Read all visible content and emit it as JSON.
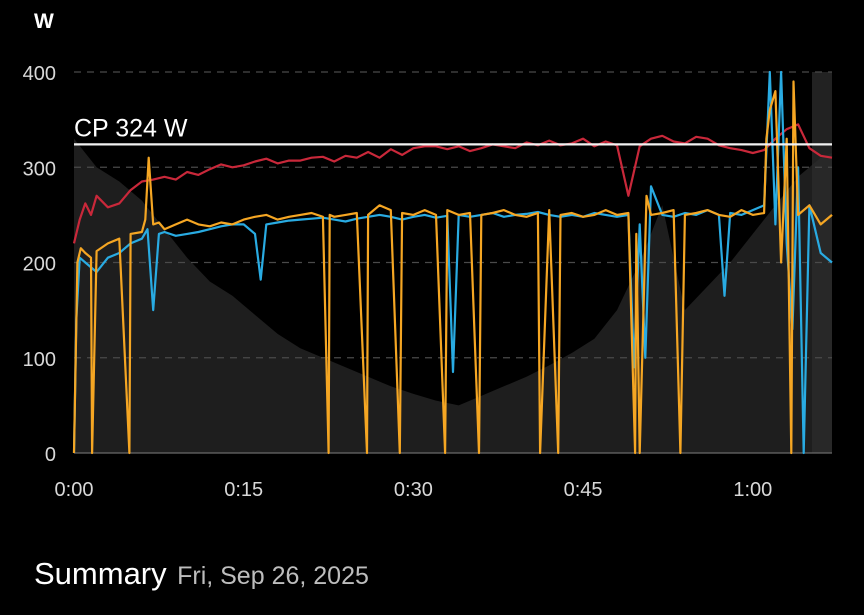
{
  "header": {
    "unit_label": "W"
  },
  "summary": {
    "title": "Summary",
    "date": "Fri, Sep 26, 2025"
  },
  "colors": {
    "background": "#000000",
    "grid": "#4a4a4a",
    "cp_line": "#f2f2f2",
    "red_series": "#c9283a",
    "blue_series": "#29abe2",
    "orange_series": "#f5a623",
    "area": "#1e1e1e"
  },
  "chart_data": {
    "type": "line",
    "ylim": [
      0,
      400
    ],
    "xlim_minutes": [
      0,
      67
    ],
    "y_ticks": [
      "0",
      "100",
      "200",
      "300",
      "400"
    ],
    "y_tick_values": [
      0,
      100,
      200,
      300,
      400
    ],
    "x_ticks": [
      "0:00",
      "0:15",
      "0:30",
      "0:45",
      "1:00"
    ],
    "x_tick_minutes": [
      0,
      15,
      30,
      45,
      60
    ],
    "grid": true,
    "critical_power": {
      "label": "CP 324 W",
      "value": 324
    },
    "series": [
      {
        "color": "#c9283a",
        "x": [
          0,
          0.5,
          1,
          1.5,
          2,
          3,
          4,
          5,
          6,
          7,
          8,
          9,
          10,
          11,
          12,
          13,
          14,
          15,
          16,
          17,
          18,
          19,
          20,
          21,
          22,
          23,
          24,
          25,
          26,
          27,
          28,
          29,
          30,
          31,
          32,
          33,
          34,
          35,
          36,
          37,
          38,
          39,
          40,
          41,
          42,
          43,
          44,
          45,
          46,
          47,
          48,
          49,
          50,
          51,
          52,
          53,
          54,
          55,
          56,
          57,
          58,
          59,
          60,
          61,
          62,
          63,
          64,
          65,
          66,
          67
        ],
        "values": [
          220,
          245,
          262,
          250,
          270,
          258,
          262,
          276,
          285,
          287,
          290,
          287,
          295,
          292,
          298,
          303,
          300,
          302,
          306,
          309,
          304,
          307,
          307,
          310,
          311,
          306,
          312,
          310,
          316,
          310,
          319,
          313,
          320,
          322,
          322,
          319,
          322,
          317,
          320,
          324,
          322,
          320,
          326,
          323,
          328,
          323,
          325,
          330,
          322,
          327,
          323,
          270,
          322,
          330,
          333,
          327,
          325,
          332,
          330,
          323,
          320,
          318,
          315,
          318,
          330,
          340,
          345,
          320,
          312,
          310
        ]
      },
      {
        "color": "#29abe2",
        "x": [
          0,
          0.2,
          0.5,
          1,
          2,
          3,
          4,
          5,
          6,
          6.5,
          7,
          7.5,
          8,
          9,
          10,
          11,
          12,
          13,
          14,
          15,
          16,
          16.5,
          17,
          18,
          19,
          20,
          21,
          22,
          23,
          24,
          25,
          26,
          27,
          28,
          29,
          30,
          31,
          32,
          33,
          33.5,
          34,
          35,
          36,
          37,
          38,
          39,
          40,
          41,
          42,
          43,
          44,
          45,
          46,
          47,
          48,
          49,
          49.5,
          50,
          50.5,
          51,
          52,
          53,
          54,
          55,
          56,
          57,
          57.5,
          58,
          59,
          60,
          61,
          61.5,
          62,
          62.5,
          63,
          63.5,
          64,
          64.5,
          65,
          66,
          67
        ],
        "values": [
          0,
          140,
          205,
          200,
          190,
          205,
          210,
          220,
          225,
          235,
          150,
          230,
          232,
          228,
          230,
          232,
          235,
          238,
          240,
          240,
          230,
          182,
          240,
          242,
          244,
          245,
          246,
          247,
          245,
          243,
          246,
          248,
          250,
          248,
          245,
          248,
          250,
          247,
          249,
          85,
          250,
          248,
          250,
          252,
          248,
          250,
          251,
          253,
          250,
          248,
          250,
          248,
          252,
          250,
          248,
          250,
          90,
          240,
          100,
          280,
          250,
          248,
          252,
          250,
          255,
          250,
          165,
          252,
          250,
          255,
          260,
          400,
          240,
          400,
          220,
          130,
          300,
          0,
          260,
          210,
          200
        ]
      },
      {
        "color": "#f5a623",
        "x": [
          0,
          0.3,
          0.6,
          1,
          1.5,
          1.6,
          2,
          3,
          4,
          4.9,
          5,
          6,
          6.3,
          6.6,
          7,
          7.5,
          8,
          9,
          10,
          11,
          12,
          13,
          14,
          15,
          16,
          17,
          18,
          19,
          20,
          21,
          22,
          22.5,
          22.6,
          23,
          24,
          25,
          25.9,
          26,
          27,
          28,
          28.8,
          29,
          30,
          31,
          32,
          32.8,
          33,
          34,
          35,
          35.8,
          36,
          37,
          38,
          39,
          40,
          41,
          41.2,
          42,
          42.8,
          43,
          44,
          45,
          46,
          47,
          48,
          49,
          49.6,
          49.7,
          50,
          50.6,
          51,
          52,
          53,
          53.6,
          54,
          55,
          56,
          57,
          58,
          59,
          60,
          61,
          61.2,
          61.5,
          62,
          62.5,
          63,
          63.4,
          63.6,
          64,
          65,
          66,
          67
        ],
        "values": [
          0,
          200,
          215,
          210,
          205,
          0,
          212,
          220,
          225,
          0,
          230,
          232,
          245,
          310,
          240,
          242,
          235,
          240,
          245,
          240,
          238,
          242,
          240,
          245,
          248,
          250,
          245,
          248,
          250,
          252,
          248,
          0,
          250,
          248,
          250,
          252,
          0,
          250,
          260,
          255,
          0,
          252,
          250,
          255,
          250,
          0,
          255,
          250,
          252,
          0,
          250,
          252,
          255,
          250,
          248,
          252,
          0,
          255,
          0,
          250,
          252,
          248,
          250,
          255,
          250,
          252,
          0,
          230,
          0,
          270,
          250,
          252,
          255,
          0,
          250,
          252,
          255,
          250,
          248,
          255,
          250,
          252,
          330,
          360,
          380,
          200,
          330,
          0,
          390,
          250,
          260,
          240,
          250
        ]
      }
    ]
  }
}
